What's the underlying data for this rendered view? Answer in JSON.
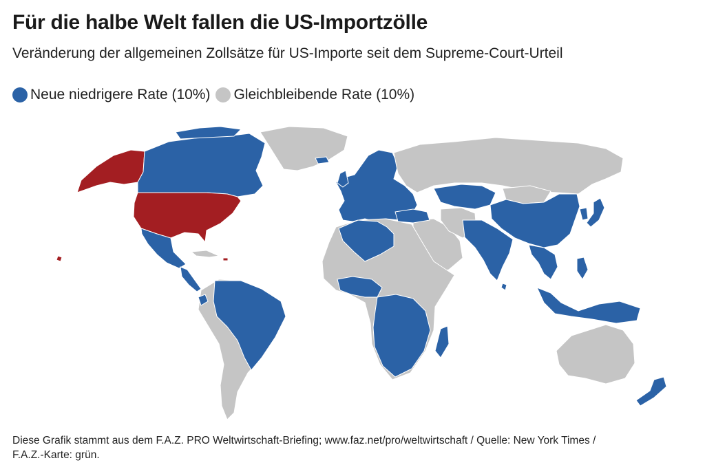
{
  "title": "Für die halbe Welt fallen die US-Importzölle",
  "subtitle": "Veränderung der allgemeinen Zollsätze für US-Importe seit dem Supreme-Court-Urteil",
  "legend": {
    "items": [
      {
        "label": "Neue niedrigere Rate (10%)",
        "color": "#2b62a6"
      },
      {
        "label": "Gleichbleibende Rate (10%)",
        "color": "#c5c5c5"
      }
    ]
  },
  "colors": {
    "lower_rate": "#2b62a6",
    "unchanged_rate": "#c5c5c5",
    "usa": "#a31e22"
  },
  "footer": {
    "line1": "Diese Grafik stammt aus dem F.A.Z. PRO Weltwirtschaft-Briefing; www.faz.net/pro/weltwirtschaft  /  Quelle: New York Times  /",
    "line2": "F.A.Z.-Karte: grün."
  }
}
